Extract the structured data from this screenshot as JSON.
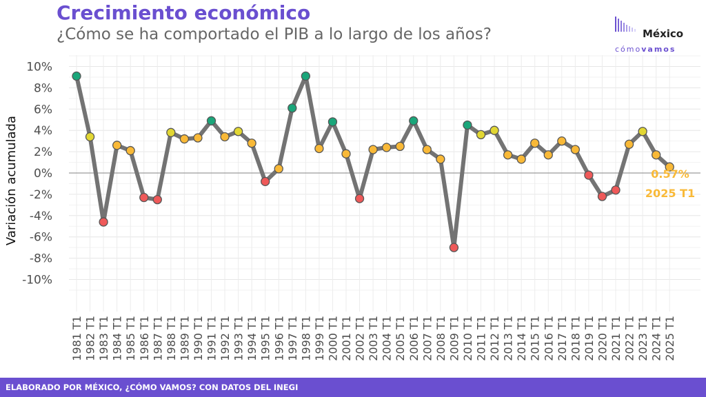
{
  "header": {
    "title": "Crecimiento económico",
    "subtitle": "¿Cómo se ha comportado el PIB a lo largo de los años?"
  },
  "logo": {
    "main": "México",
    "sub_light": "cómo",
    "sub_bold": "vamos"
  },
  "footer": {
    "text": "ELABORADO POR MÉXICO, ¿CÓMO VAMOS? CON DATOS DEL INEGI"
  },
  "colors": {
    "brand": "#6a4fd0",
    "line": "#737373",
    "green": "#1aa67a",
    "yellow": "#e2d733",
    "orange": "#f9b937",
    "red": "#ef5959",
    "annotation": "#f9b937"
  },
  "chart_data": {
    "type": "line",
    "ylabel": "Variación acumulada",
    "xlabel": "",
    "ylim": [
      -13,
      11
    ],
    "y_ticks": [
      10,
      8,
      6,
      4,
      2,
      0,
      -2,
      -4,
      -6,
      -8,
      -10
    ],
    "y_tick_labels": [
      "10%",
      "8%",
      "6%",
      "4%",
      "2%",
      "0%",
      "-2%",
      "-4%",
      "-6%",
      "-8%",
      "-10%"
    ],
    "grid": true,
    "reference_line": 0,
    "categories": [
      "1981 T1",
      "1982 T1",
      "1983 T1",
      "1984 T1",
      "1985 T1",
      "1986 T1",
      "1987 T1",
      "1988 T1",
      "1989 T1",
      "1990 T1",
      "1991 T1",
      "1992 T1",
      "1993 T1",
      "1994 T1",
      "1995 T1",
      "1996 T1",
      "1997 T1",
      "1998 T1",
      "1999 T1",
      "2000 T1",
      "2001 T1",
      "2002 T1",
      "2003 T1",
      "2004 T1",
      "2005 T1",
      "2006 T1",
      "2007 T1",
      "2008 T1",
      "2009 T1",
      "2010 T1",
      "2011 T1",
      "2012 T1",
      "2013 T1",
      "2014 T1",
      "2015 T1",
      "2016 T1",
      "2017 T1",
      "2018 T1",
      "2019 T1",
      "2020 T1",
      "2021 T1",
      "2022 T1",
      "2023 T1",
      "2024 T1",
      "2025 T1"
    ],
    "series": [
      {
        "values": [
          9.1,
          3.4,
          -4.6,
          2.6,
          2.1,
          -2.3,
          -2.5,
          3.8,
          3.2,
          3.3,
          4.9,
          3.4,
          3.9,
          2.8,
          -0.8,
          0.4,
          6.1,
          9.1,
          2.3,
          4.8,
          1.8,
          -2.4,
          2.2,
          2.4,
          2.5,
          4.9,
          2.2,
          1.3,
          -7.0,
          4.5,
          3.6,
          4.0,
          1.7,
          1.3,
          2.8,
          1.7,
          3.0,
          2.2,
          -0.2,
          -2.2,
          -1.6,
          2.7,
          3.9,
          1.7,
          0.57
        ],
        "marker_colors": [
          "green",
          "yellow",
          "red",
          "orange",
          "orange",
          "red",
          "red",
          "yellow",
          "orange",
          "orange",
          "green",
          "orange",
          "yellow",
          "orange",
          "red",
          "orange",
          "green",
          "green",
          "orange",
          "green",
          "orange",
          "red",
          "orange",
          "orange",
          "orange",
          "green",
          "orange",
          "orange",
          "red",
          "green",
          "yellow",
          "yellow",
          "orange",
          "orange",
          "orange",
          "orange",
          "orange",
          "orange",
          "red",
          "red",
          "red",
          "orange",
          "yellow",
          "orange",
          "orange"
        ]
      }
    ],
    "annotation": {
      "value_label": "0.57%",
      "period_label": "2025 T1"
    }
  }
}
